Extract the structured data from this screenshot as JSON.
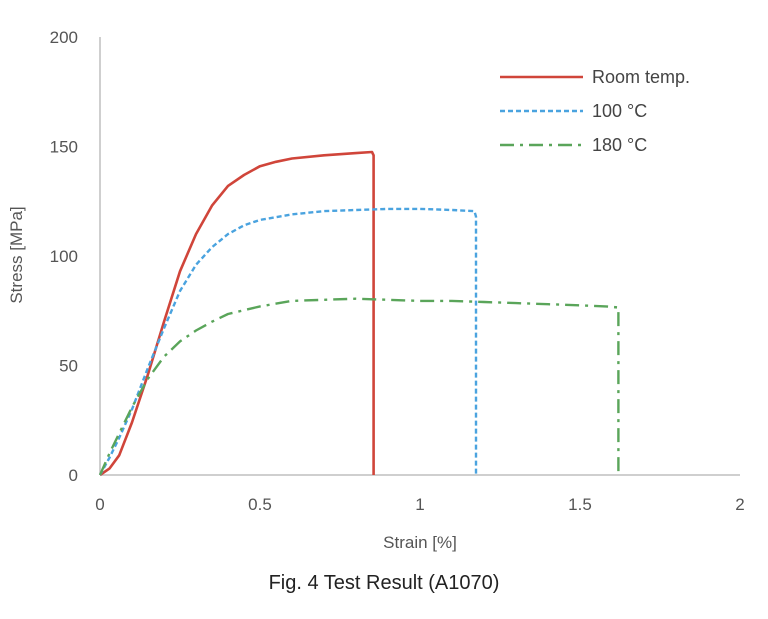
{
  "caption": "Fig. 4 Test Result (A1070)",
  "chart_data": {
    "type": "line",
    "xlabel": "Strain [%]",
    "ylabel": "Stress [MPa]",
    "xlim": [
      0,
      2
    ],
    "ylim": [
      0,
      200
    ],
    "x_ticks": [
      "0",
      "0.5",
      "1",
      "1.5",
      "2"
    ],
    "x_tick_values": [
      0,
      0.5,
      1,
      1.5,
      2
    ],
    "y_ticks": [
      "0",
      "50",
      "100",
      "150",
      "200"
    ],
    "y_tick_values": [
      0,
      50,
      100,
      150,
      200
    ],
    "grid": false,
    "legend_position": "top-right",
    "series": [
      {
        "name": "Room temp.",
        "color": "#d0453a",
        "line_style": "solid",
        "points": [
          [
            0,
            0
          ],
          [
            0.03,
            3
          ],
          [
            0.06,
            9
          ],
          [
            0.1,
            24
          ],
          [
            0.15,
            46
          ],
          [
            0.2,
            70
          ],
          [
            0.25,
            93
          ],
          [
            0.3,
            110
          ],
          [
            0.35,
            123
          ],
          [
            0.4,
            132
          ],
          [
            0.45,
            137
          ],
          [
            0.5,
            141
          ],
          [
            0.55,
            143
          ],
          [
            0.6,
            144.5
          ],
          [
            0.7,
            146
          ],
          [
            0.8,
            147
          ],
          [
            0.85,
            147.5
          ],
          [
            0.855,
            146
          ],
          [
            0.855,
            0
          ]
        ]
      },
      {
        "name": "100 °C",
        "color": "#4aa3df",
        "line_style": "dotted",
        "points": [
          [
            0,
            0
          ],
          [
            0.03,
            8
          ],
          [
            0.06,
            17
          ],
          [
            0.1,
            30
          ],
          [
            0.15,
            49
          ],
          [
            0.2,
            67
          ],
          [
            0.25,
            84
          ],
          [
            0.3,
            96
          ],
          [
            0.35,
            104
          ],
          [
            0.4,
            110
          ],
          [
            0.45,
            114
          ],
          [
            0.5,
            116.5
          ],
          [
            0.6,
            119
          ],
          [
            0.7,
            120.5
          ],
          [
            0.8,
            121
          ],
          [
            0.9,
            121.5
          ],
          [
            1.0,
            121.5
          ],
          [
            1.1,
            121
          ],
          [
            1.17,
            120.5
          ],
          [
            1.175,
            118
          ],
          [
            1.175,
            0
          ]
        ]
      },
      {
        "name": "180 °C",
        "color": "#5aa55a",
        "line_style": "dashdot",
        "points": [
          [
            0,
            0
          ],
          [
            0.03,
            10
          ],
          [
            0.06,
            19
          ],
          [
            0.1,
            31
          ],
          [
            0.15,
            44
          ],
          [
            0.2,
            54
          ],
          [
            0.25,
            61
          ],
          [
            0.3,
            66
          ],
          [
            0.35,
            70
          ],
          [
            0.4,
            73.5
          ],
          [
            0.5,
            77
          ],
          [
            0.6,
            79.5
          ],
          [
            0.7,
            80
          ],
          [
            0.8,
            80.5
          ],
          [
            0.9,
            80
          ],
          [
            1.0,
            79.5
          ],
          [
            1.1,
            79.5
          ],
          [
            1.2,
            79
          ],
          [
            1.3,
            78.5
          ],
          [
            1.4,
            78
          ],
          [
            1.5,
            77.5
          ],
          [
            1.58,
            77
          ],
          [
            1.62,
            76.5
          ],
          [
            1.62,
            0
          ]
        ]
      }
    ]
  }
}
